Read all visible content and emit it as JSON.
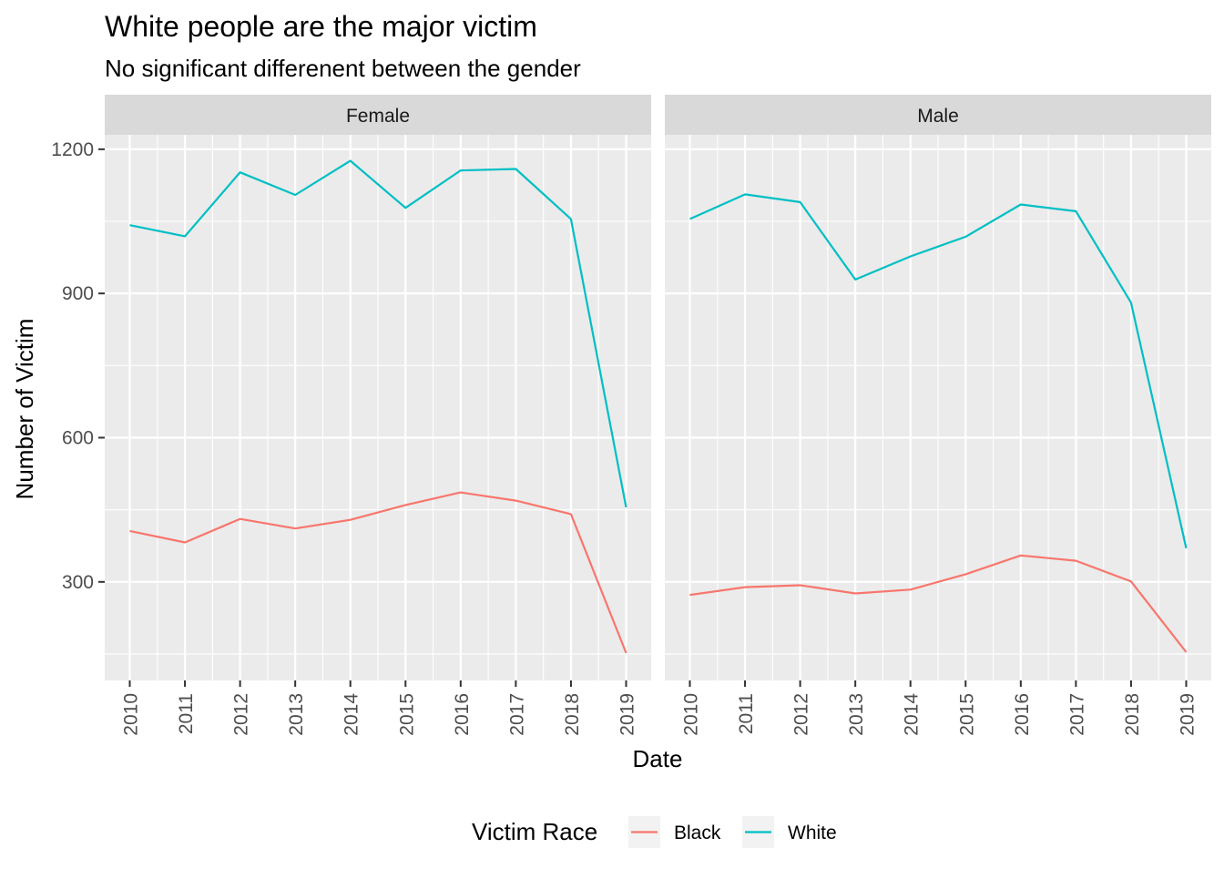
{
  "chart_data": {
    "type": "line",
    "title": "White people are the major victim",
    "subtitle": "No significant differenent between the gender",
    "xlabel": "Date",
    "ylabel": "Number of Victim",
    "x": [
      "2010",
      "2011",
      "2012",
      "2013",
      "2014",
      "2015",
      "2016",
      "2017",
      "2018",
      "2019"
    ],
    "ylim": [
      95,
      1230
    ],
    "yticks": [
      300,
      600,
      900,
      1200
    ],
    "grid": true,
    "legend": {
      "title": "Victim Race",
      "position": "bottom",
      "entries": [
        {
          "label": "Black",
          "color": "#F8766D"
        },
        {
          "label": "White",
          "color": "#00BFC4"
        }
      ]
    },
    "panels": [
      {
        "label": "Female",
        "series": [
          {
            "name": "Black",
            "color": "#F8766D",
            "values": [
              406,
              382,
              431,
              411,
              429,
              460,
              486,
              469,
              441,
              152
            ]
          },
          {
            "name": "White",
            "color": "#00BFC4",
            "values": [
              1042,
              1019,
              1152,
              1105,
              1176,
              1078,
              1156,
              1159,
              1055,
              455
            ]
          }
        ]
      },
      {
        "label": "Male",
        "series": [
          {
            "name": "Black",
            "color": "#F8766D",
            "values": [
              273,
              289,
              293,
              276,
              284,
              316,
              355,
              344,
              301,
              154
            ]
          },
          {
            "name": "White",
            "color": "#00BFC4",
            "values": [
              1055,
              1106,
              1090,
              929,
              977,
              1018,
              1085,
              1071,
              881,
              370
            ]
          }
        ]
      }
    ]
  }
}
